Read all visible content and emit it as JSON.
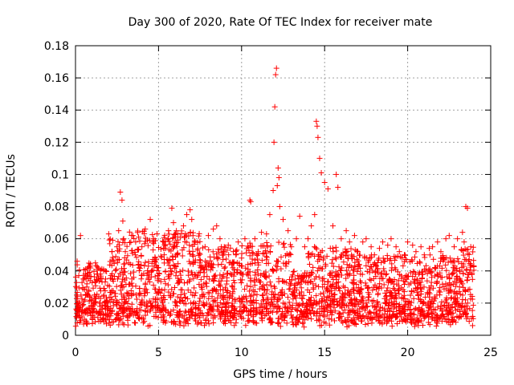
{
  "chart_data": {
    "type": "scatter",
    "title": "Day 300 of 2020, Rate Of TEC Index for receiver mate",
    "xlabel": "GPS time / hours",
    "ylabel": "ROTI / TECUs",
    "xlim": [
      0,
      25
    ],
    "ylim": [
      0,
      0.18
    ],
    "xticks": [
      0,
      5,
      10,
      15,
      20,
      25
    ],
    "yticks": [
      0,
      0.02,
      0.04,
      0.06,
      0.08,
      0.1,
      0.12,
      0.14,
      0.16,
      0.18
    ],
    "grid": true,
    "marker": "+",
    "marker_color": "#ff0000",
    "series": [
      {
        "x": [
          0.1,
          0.3,
          0.5,
          0.8,
          1.0,
          1.2,
          1.5,
          1.8,
          2.0,
          2.2,
          2.5,
          2.6,
          2.7,
          2.8,
          2.85,
          2.9,
          3.0,
          3.2,
          3.4,
          3.6,
          3.8,
          4.0,
          4.2,
          4.5,
          4.7,
          4.8,
          5.0,
          5.3,
          5.6,
          5.8,
          5.9,
          6.1,
          6.3,
          6.5,
          6.7,
          6.9,
          7.0,
          7.2,
          7.5,
          7.8,
          8.0,
          8.3,
          8.5,
          8.7,
          8.9,
          9.2,
          9.5,
          9.8,
          10.0,
          10.2,
          10.5,
          10.55,
          10.8,
          11.0,
          11.2,
          11.5,
          11.7,
          11.9,
          11.95,
          12.0,
          12.05,
          12.1,
          12.15,
          12.2,
          12.25,
          12.3,
          12.5,
          12.8,
          13.0,
          13.3,
          13.5,
          13.8,
          14.0,
          14.2,
          14.4,
          14.5,
          14.55,
          14.6,
          14.7,
          14.8,
          15.0,
          15.2,
          15.5,
          15.7,
          15.8,
          16.0,
          16.3,
          16.5,
          16.8,
          17.0,
          17.3,
          17.5,
          17.8,
          18.0,
          18.3,
          18.5,
          18.8,
          19.0,
          19.3,
          19.5,
          19.8,
          20.0,
          20.3,
          20.5,
          20.8,
          21.0,
          21.3,
          21.5,
          21.8,
          22.0,
          22.3,
          22.5,
          22.8,
          23.0,
          23.3,
          23.4,
          23.5,
          23.6,
          23.8
        ],
        "y": [
          0.046,
          0.062,
          0.035,
          0.028,
          0.022,
          0.045,
          0.035,
          0.04,
          0.063,
          0.052,
          0.055,
          0.065,
          0.089,
          0.084,
          0.071,
          0.06,
          0.052,
          0.045,
          0.035,
          0.05,
          0.061,
          0.055,
          0.066,
          0.072,
          0.06,
          0.048,
          0.042,
          0.058,
          0.065,
          0.079,
          0.07,
          0.05,
          0.061,
          0.068,
          0.075,
          0.078,
          0.072,
          0.058,
          0.045,
          0.055,
          0.062,
          0.066,
          0.068,
          0.06,
          0.05,
          0.056,
          0.052,
          0.058,
          0.048,
          0.06,
          0.084,
          0.083,
          0.06,
          0.052,
          0.064,
          0.063,
          0.075,
          0.09,
          0.12,
          0.142,
          0.162,
          0.166,
          0.093,
          0.104,
          0.098,
          0.08,
          0.072,
          0.065,
          0.055,
          0.06,
          0.074,
          0.055,
          0.06,
          0.068,
          0.075,
          0.133,
          0.13,
          0.123,
          0.11,
          0.101,
          0.095,
          0.091,
          0.068,
          0.1,
          0.092,
          0.06,
          0.065,
          0.058,
          0.062,
          0.052,
          0.058,
          0.06,
          0.055,
          0.05,
          0.054,
          0.058,
          0.056,
          0.06,
          0.055,
          0.052,
          0.05,
          0.058,
          0.056,
          0.052,
          0.055,
          0.05,
          0.054,
          0.055,
          0.058,
          0.052,
          0.06,
          0.062,
          0.055,
          0.06,
          0.064,
          0.058,
          0.08,
          0.079,
          0.055
        ]
      }
    ]
  }
}
